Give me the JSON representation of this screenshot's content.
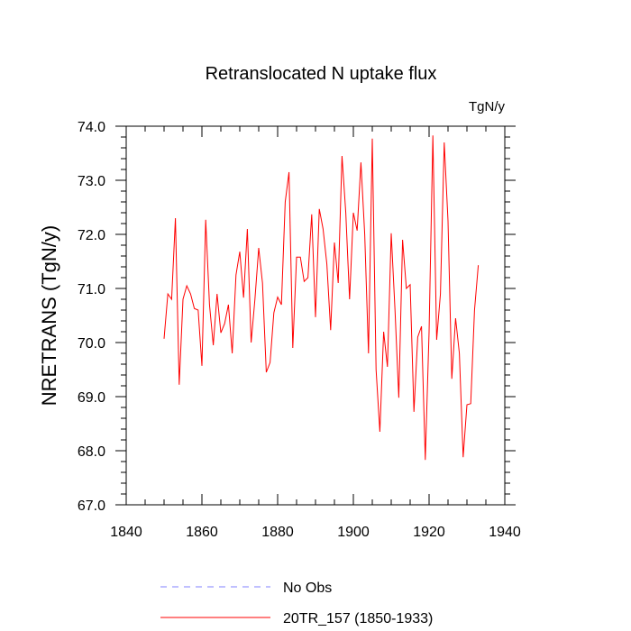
{
  "chart_data": {
    "type": "line",
    "title": "Retranslocated N uptake flux",
    "units_label": "TgN/y",
    "ylabel": "NRETRANS  (TgN/y)",
    "xlabel": "",
    "xlim": [
      1840,
      1940
    ],
    "ylim": [
      67.0,
      74.0
    ],
    "x_ticks": [
      1840,
      1860,
      1880,
      1900,
      1920,
      1940
    ],
    "x_tick_labels": [
      "1840",
      "1860",
      "1880",
      "1900",
      "1920",
      "1940"
    ],
    "y_ticks": [
      67.0,
      68.0,
      69.0,
      70.0,
      71.0,
      72.0,
      73.0,
      74.0
    ],
    "y_tick_labels": [
      "67.0",
      "68.0",
      "69.0",
      "70.0",
      "71.0",
      "72.0",
      "73.0",
      "74.0"
    ],
    "series": [
      {
        "name": "20TR_157 (1850-1933)",
        "color": "#ff0000",
        "style": "solid",
        "x": [
          1850,
          1851,
          1852,
          1853,
          1854,
          1855,
          1856,
          1857,
          1858,
          1859,
          1860,
          1861,
          1862,
          1863,
          1864,
          1865,
          1866,
          1867,
          1868,
          1869,
          1870,
          1871,
          1872,
          1873,
          1874,
          1875,
          1876,
          1877,
          1878,
          1879,
          1880,
          1881,
          1882,
          1883,
          1884,
          1885,
          1886,
          1887,
          1888,
          1889,
          1890,
          1891,
          1892,
          1893,
          1894,
          1895,
          1896,
          1897,
          1898,
          1899,
          1900,
          1901,
          1902,
          1903,
          1904,
          1905,
          1906,
          1907,
          1908,
          1909,
          1910,
          1911,
          1912,
          1913,
          1914,
          1915,
          1916,
          1917,
          1918,
          1919,
          1920,
          1921,
          1922,
          1923,
          1924,
          1925,
          1926,
          1927,
          1928,
          1929,
          1930,
          1931,
          1932,
          1933
        ],
        "values": [
          70.07,
          70.9,
          70.8,
          72.3,
          69.22,
          70.8,
          71.05,
          70.9,
          70.63,
          70.6,
          69.57,
          72.27,
          70.7,
          69.95,
          70.9,
          70.18,
          70.35,
          70.7,
          69.8,
          71.25,
          71.68,
          70.83,
          72.1,
          70.0,
          70.8,
          71.75,
          71.1,
          69.45,
          69.63,
          70.55,
          70.84,
          70.7,
          72.6,
          73.15,
          69.9,
          71.58,
          71.58,
          71.13,
          71.2,
          72.37,
          70.47,
          72.47,
          72.1,
          71.45,
          70.23,
          71.85,
          71.1,
          73.45,
          72.4,
          70.8,
          72.4,
          72.07,
          73.33,
          72.0,
          69.8,
          73.77,
          69.5,
          68.35,
          70.2,
          69.55,
          72.02,
          70.6,
          68.98,
          71.9,
          71.0,
          71.07,
          68.72,
          70.1,
          70.3,
          67.83,
          70.2,
          73.83,
          70.05,
          70.9,
          73.7,
          72.25,
          69.33,
          70.45,
          69.8,
          67.88,
          68.85,
          68.87,
          70.6,
          71.43
        ]
      },
      {
        "name": "No Obs",
        "color": "#8080ff",
        "style": "dashed",
        "x": [],
        "values": []
      }
    ],
    "legend": [
      {
        "label": "No Obs",
        "color": "#8080ff",
        "style": "dashed"
      },
      {
        "label": "20TR_157 (1850-1933)",
        "color": "#ff0000",
        "style": "solid"
      }
    ],
    "legend_position": "bottom"
  }
}
